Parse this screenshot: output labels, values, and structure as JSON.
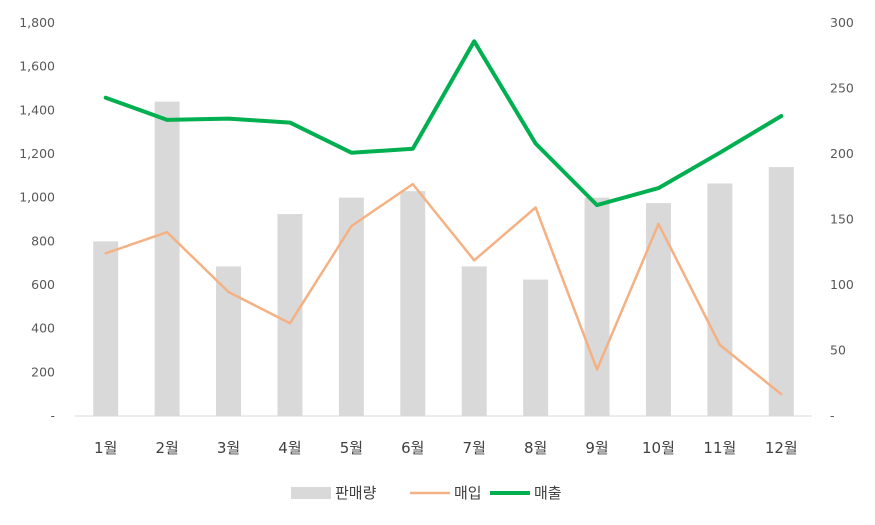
{
  "chart_data": {
    "type": "bar",
    "categories": [
      "1월",
      "2월",
      "3월",
      "4월",
      "5월",
      "6월",
      "7월",
      "8월",
      "9월",
      "10월",
      "11월",
      "12월"
    ],
    "series": [
      {
        "name": "판매량",
        "type": "bar",
        "axis": "left",
        "color": "#d9d9d9",
        "values": [
          800,
          1440,
          685,
          925,
          1000,
          1030,
          685,
          625,
          1000,
          975,
          1065,
          1140
        ]
      },
      {
        "name": "매입",
        "type": "line",
        "axis": "left",
        "color": "#f4b183",
        "values": [
          745,
          842,
          568,
          425,
          870,
          1062,
          713,
          955,
          213,
          880,
          325,
          100
        ]
      },
      {
        "name": "매출",
        "type": "line",
        "axis": "right",
        "color": "#00b050",
        "values": [
          243,
          226,
          227,
          224,
          201,
          204,
          286,
          208,
          161,
          174,
          201,
          229
        ]
      }
    ],
    "left_axis": {
      "min": 0,
      "max": 1800,
      "step": 200,
      "tick_labels": [
        "-",
        "200",
        "400",
        "600",
        "800",
        "1,000",
        "1,200",
        "1,400",
        "1,600",
        "1,800"
      ]
    },
    "right_axis": {
      "min": 0,
      "max": 300,
      "step": 50,
      "tick_labels": [
        "-",
        "50",
        "100",
        "150",
        "200",
        "250",
        "300"
      ]
    },
    "grid": false,
    "legend": {
      "position": "bottom",
      "items": [
        "판매량",
        "매입",
        "매출"
      ]
    }
  }
}
